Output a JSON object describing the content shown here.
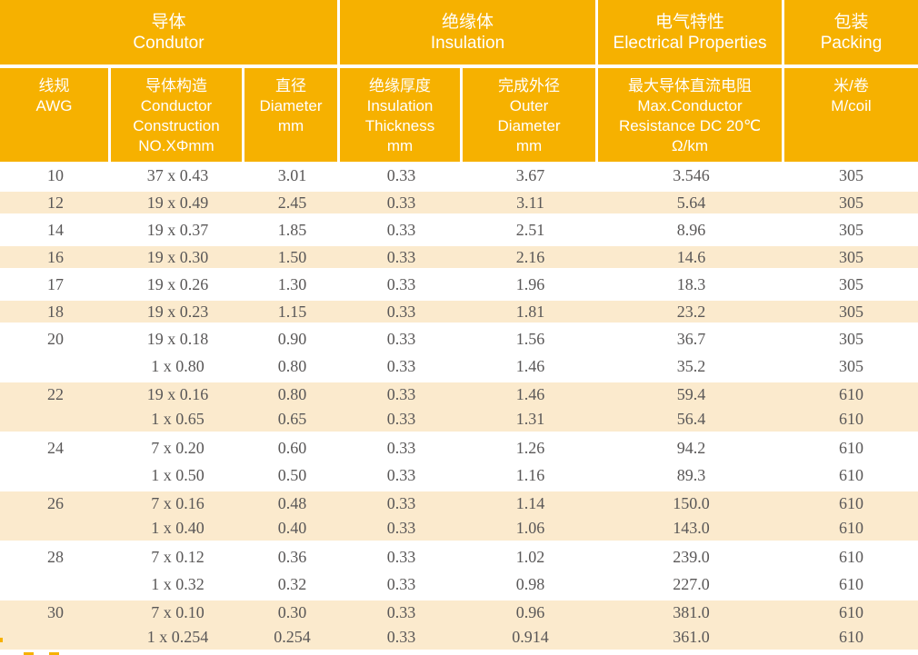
{
  "colors": {
    "header_orange": "#F6B100",
    "stripe_cream": "#FBEACD",
    "body_text": "#595757",
    "header_text": "#FFFFFF"
  },
  "table": {
    "group_headers": [
      {
        "zh": "导体",
        "en": "Condutor"
      },
      {
        "zh": "绝缘体",
        "en": "Insulation"
      },
      {
        "zh": "电气特性",
        "en": "Electrical Properties"
      },
      {
        "zh": "包装",
        "en": "Packing"
      }
    ],
    "column_headers": [
      {
        "lines": [
          "线规",
          "AWG"
        ]
      },
      {
        "lines": [
          "导体构造",
          "Conductor",
          "Construction",
          "NO.XΦmm"
        ]
      },
      {
        "lines": [
          "直径",
          "Diameter",
          "mm"
        ]
      },
      {
        "lines": [
          "绝缘厚度",
          "Insulation",
          "Thickness",
          "mm"
        ]
      },
      {
        "lines": [
          "完成外径",
          "Outer",
          "Diameter",
          "mm"
        ]
      },
      {
        "lines": [
          "最大导体直流电阻",
          "Max.Conductor",
          "Resistance DC 20℃",
          "Ω/km"
        ]
      },
      {
        "lines": [
          "米/卷",
          "M/coil"
        ]
      }
    ],
    "rows": [
      {
        "cells": [
          "10",
          "37 x 0.43",
          "3.01",
          "0.33",
          "3.67",
          "3.546",
          "305"
        ],
        "shade": false
      },
      {
        "cells": [
          "12",
          "19 x 0.49",
          "2.45",
          "0.33",
          "3.11",
          "5.64",
          "305"
        ],
        "shade": true
      },
      {
        "cells": [
          "14",
          "19 x 0.37",
          "1.85",
          "0.33",
          "2.51",
          "8.96",
          "305"
        ],
        "shade": false
      },
      {
        "cells": [
          "16",
          "19 x 0.30",
          "1.50",
          "0.33",
          "2.16",
          "14.6",
          "305"
        ],
        "shade": true
      },
      {
        "cells": [
          "17",
          "19 x 0.26",
          "1.30",
          "0.33",
          "1.96",
          "18.3",
          "305"
        ],
        "shade": false
      },
      {
        "cells": [
          "18",
          "19 x 0.23",
          "1.15",
          "0.33",
          "1.81",
          "23.2",
          "305"
        ],
        "shade": true
      },
      {
        "cells": [
          "20",
          "19 x 0.18",
          "0.90",
          "0.33",
          "1.56",
          "36.7",
          "305"
        ],
        "shade": false
      },
      {
        "cells": [
          "",
          "1 x 0.80",
          "0.80",
          "0.33",
          "1.46",
          "35.2",
          "305"
        ],
        "shade": false
      },
      {
        "cells": [
          "22",
          "19 x 0.16",
          "0.80",
          "0.33",
          "1.46",
          "59.4",
          "610"
        ],
        "shade": true
      },
      {
        "cells": [
          "",
          "1 x 0.65",
          "0.65",
          "0.33",
          "1.31",
          "56.4",
          "610"
        ],
        "shade": true
      },
      {
        "cells": [
          "24",
          "7 x 0.20",
          "0.60",
          "0.33",
          "1.26",
          "94.2",
          "610"
        ],
        "shade": false
      },
      {
        "cells": [
          "",
          "1 x 0.50",
          "0.50",
          "0.33",
          "1.16",
          "89.3",
          "610"
        ],
        "shade": false
      },
      {
        "cells": [
          "26",
          "7 x 0.16",
          "0.48",
          "0.33",
          "1.14",
          "150.0",
          "610"
        ],
        "shade": true
      },
      {
        "cells": [
          "",
          "1 x 0.40",
          "0.40",
          "0.33",
          "1.06",
          "143.0",
          "610"
        ],
        "shade": true
      },
      {
        "cells": [
          "28",
          "7 x 0.12",
          "0.36",
          "0.33",
          "1.02",
          "239.0",
          "610"
        ],
        "shade": false
      },
      {
        "cells": [
          "",
          "1 x 0.32",
          "0.32",
          "0.33",
          "0.98",
          "227.0",
          "610"
        ],
        "shade": false
      },
      {
        "cells": [
          "30",
          "7 x 0.10",
          "0.30",
          "0.33",
          "0.96",
          "381.0",
          "610"
        ],
        "shade": true
      },
      {
        "cells": [
          "",
          "1 x 0.254",
          "0.254",
          "0.33",
          "0.914",
          "361.0",
          "610"
        ],
        "shade": true
      }
    ]
  }
}
